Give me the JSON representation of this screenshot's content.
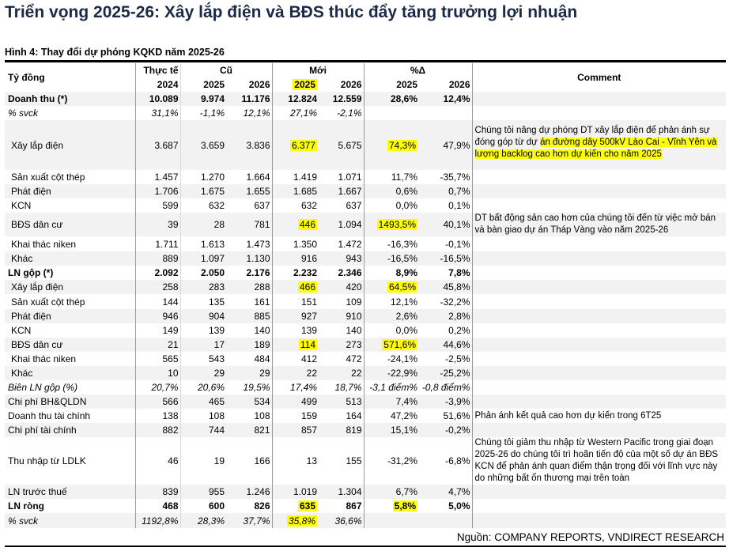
{
  "title": "Triển vọng 2025-26: Xây lắp điện và BĐS thúc đẩy tăng trưởng lợi nhuận",
  "subtitle": "Hình 4: Thay đổi dự phóng KQKD năm 2025-26",
  "header": {
    "unit": "Tỷ đồng",
    "actual": "Thực tế",
    "old": "Cũ",
    "new": "Mới",
    "pct": "%Δ",
    "comment": "Comment",
    "y2024": "2024",
    "y2025": "2025",
    "y2026": "2026"
  },
  "rows": [
    {
      "label": "Doanh thu (*)",
      "style": "bold",
      "values": [
        "10.089",
        "9.974",
        "11.176",
        "12.824",
        "12.559",
        "28,6%",
        "12,4%"
      ],
      "h": 18
    },
    {
      "label": "% svck",
      "style": "ital",
      "values": [
        "31,1%",
        "-1,1%",
        "12,1%",
        "27,1%",
        "-2,1%",
        "",
        ""
      ],
      "h": 18
    },
    {
      "label": "Xây lắp điện",
      "style": "sub",
      "values": [
        "3.687",
        "3.659",
        "3.836",
        "6.377",
        "5.675",
        "74,3%",
        "47,9%"
      ],
      "h": 63,
      "highlight": [
        3,
        5
      ],
      "comment": "Chúng tôi nâng dự phóng DT xây lắp điện để phản ánh sự đóng góp từ dự án đường dây 500kV Lào Cai - Vĩnh Yên và lượng backlog cao hơn dự kiến cho năm 2025"
    },
    {
      "label": "Sản xuất cột thép",
      "style": "sub",
      "values": [
        "1.457",
        "1.270",
        "1.664",
        "1.419",
        "1.071",
        "11,7%",
        "-35,7%"
      ],
      "h": 18
    },
    {
      "label": "Phát điện",
      "style": "sub",
      "values": [
        "1.706",
        "1.675",
        "1.655",
        "1.685",
        "1.667",
        "0,6%",
        "0,7%"
      ],
      "h": 18
    },
    {
      "label": "KCN",
      "style": "sub",
      "values": [
        "599",
        "632",
        "637",
        "632",
        "637",
        "0,0%",
        "0,1%"
      ],
      "h": 18
    },
    {
      "label": "BĐS dân cư",
      "style": "sub",
      "values": [
        "39",
        "28",
        "781",
        "446",
        "1.094",
        "1493,5%",
        "40,1%"
      ],
      "h": 29,
      "highlight": [
        3,
        5
      ],
      "comment": "DT bất động sản cao hơn của chúng tôi đến từ việc mở bán và bàn giao dự án Tháp Vàng vào năm 2025-26"
    },
    {
      "label": "Khai thác niken",
      "style": "sub",
      "values": [
        "1.711",
        "1.613",
        "1.473",
        "1.350",
        "1.472",
        "-16,3%",
        "-0,1%"
      ],
      "h": 19
    },
    {
      "label": "Khác",
      "style": "sub",
      "values": [
        "889",
        "1.097",
        "1.130",
        "916",
        "943",
        "-16,5%",
        "-16,5%"
      ],
      "h": 18
    },
    {
      "label": "LN gộp (*)",
      "style": "bold",
      "values": [
        "2.092",
        "2.050",
        "2.176",
        "2.232",
        "2.346",
        "8,9%",
        "7,8%"
      ],
      "h": 18
    },
    {
      "label": "Xây lắp điện",
      "style": "sub",
      "values": [
        "258",
        "283",
        "288",
        "466",
        "420",
        "64,5%",
        "45,8%"
      ],
      "h": 18,
      "highlight": [
        3,
        5
      ]
    },
    {
      "label": "Sản xuất cột thép",
      "style": "sub",
      "values": [
        "144",
        "135",
        "161",
        "151",
        "109",
        "12,1%",
        "-32,2%"
      ],
      "h": 19
    },
    {
      "label": "Phát điện",
      "style": "sub",
      "values": [
        "946",
        "904",
        "885",
        "927",
        "910",
        "2,6%",
        "2,8%"
      ],
      "h": 18
    },
    {
      "label": "KCN",
      "style": "sub",
      "values": [
        "149",
        "139",
        "140",
        "139",
        "140",
        "0,0%",
        "0,2%"
      ],
      "h": 18
    },
    {
      "label": "BĐS dân cư",
      "style": "sub",
      "values": [
        "21",
        "17",
        "189",
        "114",
        "273",
        "571,6%",
        "44,6%"
      ],
      "h": 18,
      "highlight": [
        3,
        5
      ]
    },
    {
      "label": "Khai thác niken",
      "style": "sub",
      "values": [
        "565",
        "543",
        "484",
        "412",
        "472",
        "-24,1%",
        "-2,5%"
      ],
      "h": 18
    },
    {
      "label": "Khác",
      "style": "sub",
      "values": [
        "10",
        "29",
        "29",
        "22",
        "22",
        "-22,9%",
        "-25,2%"
      ],
      "h": 18
    },
    {
      "label": "Biên LN gộp (%)",
      "style": "ital",
      "values": [
        "20,7%",
        "20,6%",
        "19,5%",
        "17,4%",
        "18,7%",
        "-3,1 điểm%",
        "-0,8 điểm%"
      ],
      "h": 18
    },
    {
      "label": "Chi phí BH&QLDN",
      "style": "",
      "values": [
        "566",
        "465",
        "534",
        "499",
        "513",
        "7,4%",
        "-3,9%"
      ],
      "h": 18
    },
    {
      "label": "Doanh thu tài chính",
      "style": "",
      "values": [
        "138",
        "108",
        "108",
        "159",
        "164",
        "47,2%",
        "51,6%"
      ],
      "h": 18,
      "comment": "Phản ánh kết quả cao hơn dự kiến trong 6T25"
    },
    {
      "label": "Chi phí tài chính",
      "style": "",
      "values": [
        "882",
        "744",
        "821",
        "857",
        "819",
        "15,1%",
        "-0,2%"
      ],
      "h": 18
    },
    {
      "label": "Thu nhập từ LDLK",
      "style": "",
      "values": [
        "46",
        "19",
        "166",
        "13",
        "155",
        "-31,2%",
        "-6,8%"
      ],
      "h": 60,
      "comment": "Chúng tôi giảm thu nhập từ Western Pacific trong giai đoạn 2025-26 do chúng tôi trì hoãn tiến độ của một số dự án BĐS KCN để phản ánh quan điểm thận trọng đối với lĩnh vực này do những bất ổn thương mại trên toàn"
    },
    {
      "label": "LN trước thuế",
      "style": "",
      "values": [
        "839",
        "955",
        "1.246",
        "1.019",
        "1.304",
        "6,7%",
        "4,7%"
      ],
      "h": 18
    },
    {
      "label": "LN ròng",
      "style": "bold",
      "values": [
        "468",
        "600",
        "826",
        "635",
        "867",
        "5,8%",
        "5,0%"
      ],
      "h": 18,
      "highlight": [
        3,
        5
      ]
    },
    {
      "label": "% svck",
      "style": "ital",
      "values": [
        "1192,8%",
        "28,3%",
        "37,7%",
        "35,8%",
        "36,6%",
        "",
        ""
      ],
      "h": 19,
      "highlight": [
        3
      ]
    }
  ],
  "source": "Nguồn: COMPANY REPORTS, VNDIRECT RESEARCH",
  "colors": {
    "highlight": "#ffff00",
    "stripe": "#f2f2f2",
    "title": "#1b2a47"
  }
}
